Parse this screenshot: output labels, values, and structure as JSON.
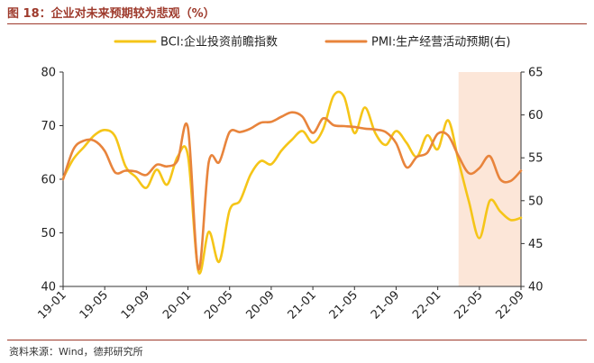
{
  "figure_title": "图 18：企业对未来预期较为悲观（%）",
  "source": "资料来源：Wind，德邦研究所",
  "colors": {
    "bci": "#f5c518",
    "pmi": "#e8843c",
    "highlight": "#fce6d8",
    "accent": "#9e3a2c"
  },
  "chart_data": {
    "type": "line",
    "title": "",
    "legend_position": "top",
    "grid": false,
    "x_ticks": [
      "19-01",
      "19-05",
      "19-09",
      "20-01",
      "20-05",
      "20-09",
      "21-01",
      "21-05",
      "21-09",
      "22-01",
      "22-05",
      "22-09"
    ],
    "x_range": [
      "2019-01",
      "2022-09"
    ],
    "y_left": {
      "range": [
        40,
        80
      ],
      "ticks": [
        40,
        50,
        60,
        70,
        80
      ]
    },
    "y_right": {
      "range": [
        40,
        65
      ],
      "ticks": [
        40,
        45,
        50,
        55,
        60,
        65
      ]
    },
    "highlight_range": [
      "2022-03",
      "2022-11"
    ],
    "series": [
      {
        "name": "BCI:企业投资前瞻指数",
        "axis": "left",
        "points": [
          [
            "2019-01",
            60.2
          ],
          [
            "2019-02",
            63.8
          ],
          [
            "2019-03",
            66.0
          ],
          [
            "2019-04",
            68.2
          ],
          [
            "2019-05",
            69.2
          ],
          [
            "2019-06",
            68.0
          ],
          [
            "2019-07",
            62.4
          ],
          [
            "2019-08",
            60.4
          ],
          [
            "2019-09",
            58.4
          ],
          [
            "2019-10",
            61.8
          ],
          [
            "2019-11",
            59.0
          ],
          [
            "2019-12",
            64.2
          ],
          [
            "2020-01",
            64.4
          ],
          [
            "2020-02",
            42.8
          ],
          [
            "2020-03",
            50.2
          ],
          [
            "2020-04",
            44.6
          ],
          [
            "2020-05",
            54.2
          ],
          [
            "2020-06",
            56.0
          ],
          [
            "2020-07",
            60.8
          ],
          [
            "2020-08",
            63.4
          ],
          [
            "2020-09",
            62.8
          ],
          [
            "2020-10",
            65.4
          ],
          [
            "2020-11",
            67.4
          ],
          [
            "2020-12",
            69.0
          ],
          [
            "2021-01",
            66.8
          ],
          [
            "2021-02",
            69.4
          ],
          [
            "2021-03",
            75.6
          ],
          [
            "2021-04",
            75.4
          ],
          [
            "2021-05",
            68.6
          ],
          [
            "2021-06",
            73.4
          ],
          [
            "2021-07",
            68.6
          ],
          [
            "2021-08",
            66.4
          ],
          [
            "2021-09",
            69.0
          ],
          [
            "2021-10",
            66.8
          ],
          [
            "2021-11",
            64.2
          ],
          [
            "2021-12",
            68.2
          ],
          [
            "2022-01",
            65.6
          ],
          [
            "2022-02",
            71.0
          ],
          [
            "2022-03",
            63.4
          ],
          [
            "2022-04",
            55.8
          ],
          [
            "2022-05",
            49.0
          ],
          [
            "2022-06",
            56.0
          ],
          [
            "2022-07",
            54.0
          ],
          [
            "2022-08",
            52.4
          ],
          [
            "2022-09",
            52.8
          ]
        ]
      },
      {
        "name": "PMI:生产经营活动预期(右)",
        "axis": "right",
        "points": [
          [
            "2019-01",
            52.5
          ],
          [
            "2019-02",
            56.0
          ],
          [
            "2019-03",
            57.0
          ],
          [
            "2019-04",
            57.0
          ],
          [
            "2019-05",
            55.8
          ],
          [
            "2019-06",
            53.3
          ],
          [
            "2019-07",
            53.5
          ],
          [
            "2019-08",
            53.4
          ],
          [
            "2019-09",
            53.0
          ],
          [
            "2019-10",
            54.2
          ],
          [
            "2019-11",
            54.0
          ],
          [
            "2019-12",
            54.7
          ],
          [
            "2020-01",
            58.5
          ],
          [
            "2020-02",
            42.0
          ],
          [
            "2020-03",
            54.5
          ],
          [
            "2020-04",
            54.5
          ],
          [
            "2020-05",
            58.0
          ],
          [
            "2020-06",
            58.0
          ],
          [
            "2020-07",
            58.4
          ],
          [
            "2020-08",
            59.1
          ],
          [
            "2020-09",
            59.2
          ],
          [
            "2020-10",
            59.8
          ],
          [
            "2020-11",
            60.3
          ],
          [
            "2020-12",
            59.8
          ],
          [
            "2021-01",
            57.9
          ],
          [
            "2021-02",
            59.6
          ],
          [
            "2021-03",
            58.8
          ],
          [
            "2021-04",
            58.7
          ],
          [
            "2021-05",
            58.6
          ],
          [
            "2021-06",
            58.4
          ],
          [
            "2021-07",
            58.3
          ],
          [
            "2021-08",
            58.0
          ],
          [
            "2021-09",
            56.7
          ],
          [
            "2021-10",
            53.9
          ],
          [
            "2021-11",
            55.1
          ],
          [
            "2021-12",
            55.6
          ],
          [
            "2022-01",
            57.8
          ],
          [
            "2022-02",
            57.6
          ],
          [
            "2022-03",
            55.2
          ],
          [
            "2022-04",
            53.2
          ],
          [
            "2022-05",
            53.8
          ],
          [
            "2022-06",
            55.2
          ],
          [
            "2022-07",
            52.5
          ],
          [
            "2022-08",
            52.3
          ],
          [
            "2022-09",
            53.5
          ]
        ]
      }
    ]
  }
}
